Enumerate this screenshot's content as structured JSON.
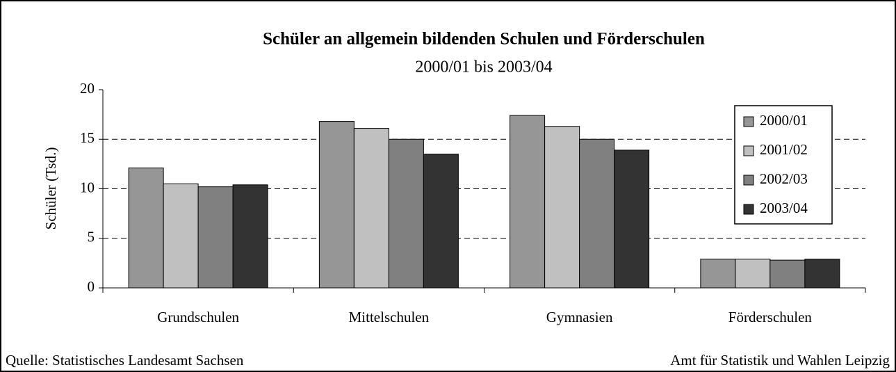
{
  "chart_data": {
    "type": "bar",
    "title": "Schüler an allgemein bildenden Schulen und Förderschulen",
    "subtitle": "2000/01 bis 2003/04",
    "y_label": "Schüler (Tsd.)",
    "categories": [
      "Grundschulen",
      "Mittelschulen",
      "Gymnasien",
      "Förderschulen"
    ],
    "series": [
      {
        "name": "2000/01",
        "color": "#969696",
        "values": [
          12.1,
          16.8,
          17.4,
          2.9
        ]
      },
      {
        "name": "2001/02",
        "color": "#c0c0c0",
        "values": [
          10.5,
          16.1,
          16.3,
          2.9
        ]
      },
      {
        "name": "2002/03",
        "color": "#808080",
        "values": [
          10.2,
          15.0,
          15.0,
          2.8
        ]
      },
      {
        "name": "2003/04",
        "color": "#333333",
        "values": [
          10.4,
          13.5,
          13.9,
          2.9
        ]
      }
    ],
    "ylim": [
      0,
      20
    ],
    "yticks": [
      0,
      5,
      10,
      15,
      20
    ],
    "grid": true,
    "legend": "right",
    "source": "Quelle: Statistisches Landesamt Sachsen",
    "credit": "Amt für Statistik und Wahlen Leipzig"
  }
}
